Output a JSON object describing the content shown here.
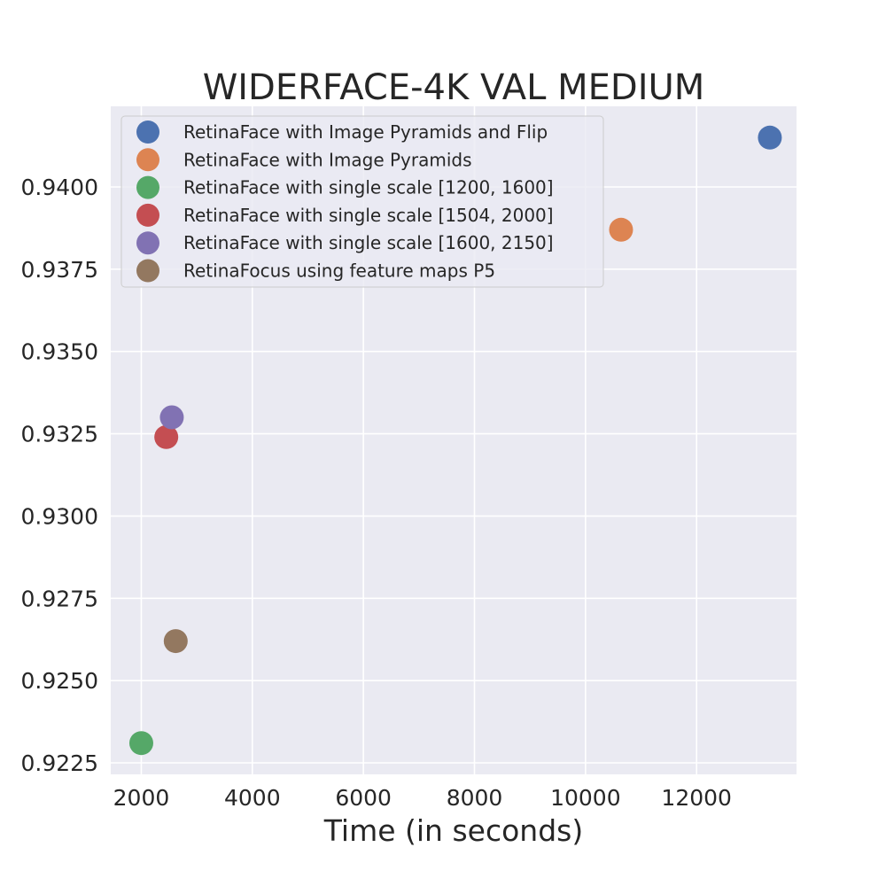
{
  "chart_data": {
    "type": "scatter",
    "title": "WIDERFACE-4K VAL MEDIUM",
    "xlabel": "Time (in seconds)",
    "ylabel": "",
    "xlim": [
      1450,
      13800
    ],
    "ylim": [
      0.92215,
      0.94245
    ],
    "xticks": [
      2000,
      4000,
      6000,
      8000,
      10000,
      12000
    ],
    "yticks": [
      0.9225,
      0.925,
      0.9275,
      0.93,
      0.9325,
      0.935,
      0.9375,
      0.94
    ],
    "xtick_labels": [
      "2000",
      "4000",
      "6000",
      "8000",
      "10000",
      "12000"
    ],
    "ytick_labels": [
      "0.9225",
      "0.9250",
      "0.9275",
      "0.9300",
      "0.9325",
      "0.9350",
      "0.9375",
      "0.9400"
    ],
    "grid": true,
    "legend_position": "upper-left",
    "background": "#eaeaf2",
    "series": [
      {
        "name": "RetinaFace with Image Pyramids and Flip",
        "color": "#4c72b0",
        "x": [
          13320
        ],
        "y": [
          0.9415
        ]
      },
      {
        "name": "RetinaFace with Image Pyramids",
        "color": "#dd8452",
        "x": [
          10640
        ],
        "y": [
          0.9387
        ]
      },
      {
        "name": "RetinaFace with single scale [1200, 1600]",
        "color": "#55a868",
        "x": [
          2000
        ],
        "y": [
          0.9231
        ]
      },
      {
        "name": "RetinaFace with single scale [1504, 2000]",
        "color": "#c44e52",
        "x": [
          2450
        ],
        "y": [
          0.9324
        ]
      },
      {
        "name": "RetinaFace with single scale [1600, 2150]",
        "color": "#8172b3",
        "x": [
          2550
        ],
        "y": [
          0.933
        ]
      },
      {
        "name": "RetinaFocus using feature maps P5",
        "color": "#937860",
        "x": [
          2620
        ],
        "y": [
          0.9262
        ]
      }
    ]
  }
}
